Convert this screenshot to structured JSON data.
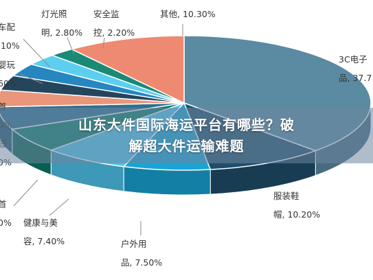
{
  "banner": {
    "line1": "山东大件国际海运平台有哪些？破",
    "line2": "解超大件运输难题"
  },
  "chart_data": {
    "type": "pie",
    "style": "3d",
    "slices": [
      {
        "label_lines": [
          "3C电子",
          "品, 37.7"
        ],
        "value": 37.7,
        "color": "#5b8aa3"
      },
      {
        "label_lines": [
          "服装鞋",
          "帽, 10.20%"
        ],
        "value": 10.2,
        "color": "#1f4e6b"
      },
      {
        "label_lines": [
          "户外用",
          "品, 7.50%"
        ],
        "value": 7.5,
        "color": "#1aa3d4"
      },
      {
        "label_lines": [
          "健康与美",
          "容, 7.40%"
        ],
        "value": 7.4,
        "color": "#4fc3ea"
      },
      {
        "label_lines": [
          "首",
          "0%"
        ],
        "value": 6.0,
        "color": "#0d7a6a"
      },
      {
        "label_lines": [
          "园",
          "0%"
        ],
        "value": 5.5,
        "color": "#2f6f90"
      },
      {
        "label_lines": [
          "首",
          "0%"
        ],
        "value": 4.0,
        "color": "#e9967a"
      },
      {
        "label_lines": [
          "婴玩",
          "60%"
        ],
        "value": 3.6,
        "color": "#23465d"
      },
      {
        "label_lines": [
          "车配",
          ".10%"
        ],
        "value": 3.1,
        "color": "#2686c0"
      },
      {
        "label_lines": [
          "灯光照",
          "明, 2.80%"
        ],
        "value": 2.8,
        "color": "#5ccff0"
      },
      {
        "label_lines": [
          "安全监",
          "控, 2.20%"
        ],
        "value": 2.2,
        "color": "#1a8a77"
      },
      {
        "label_lines": [
          "其他, 10.30%"
        ],
        "value": 10.3,
        "color": "#ee8a71"
      }
    ]
  }
}
